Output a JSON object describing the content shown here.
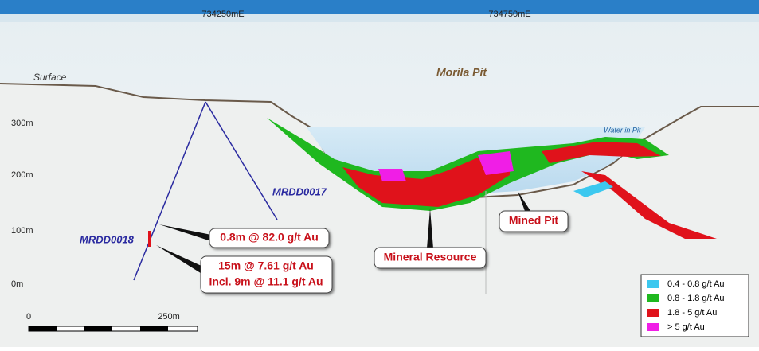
{
  "header": {
    "eastings": [
      "734250mE",
      "734750mE"
    ]
  },
  "elevations": [
    "300m",
    "200m",
    "100m",
    "0m"
  ],
  "labels": {
    "surface": "Surface",
    "pit": "Morila Pit",
    "water": "Water in Pit",
    "hole_a": "MRDD0017",
    "hole_b": "MRDD0018"
  },
  "callouts": {
    "intercept_a": "0.8m @ 82.0 g/t Au",
    "intercept_b": [
      "15m @ 7.61 g/t Au",
      "Incl. 9m @ 11.1 g/t Au"
    ],
    "resource": "Mineral Resource",
    "mined_pit": "Mined Pit"
  },
  "scale_bar": {
    "start": "0",
    "end": "250m"
  },
  "legend": [
    {
      "label": "0.4 - 0.8 g/t Au",
      "color": "#3cc8ef"
    },
    {
      "label": "0.8 - 1.8 g/t Au",
      "color": "#1fb81f"
    },
    {
      "label": "1.8 - 5 g/t Au",
      "color": "#e0121b"
    },
    {
      "label": "> 5 g/t Au",
      "color": "#f01ee6"
    }
  ]
}
